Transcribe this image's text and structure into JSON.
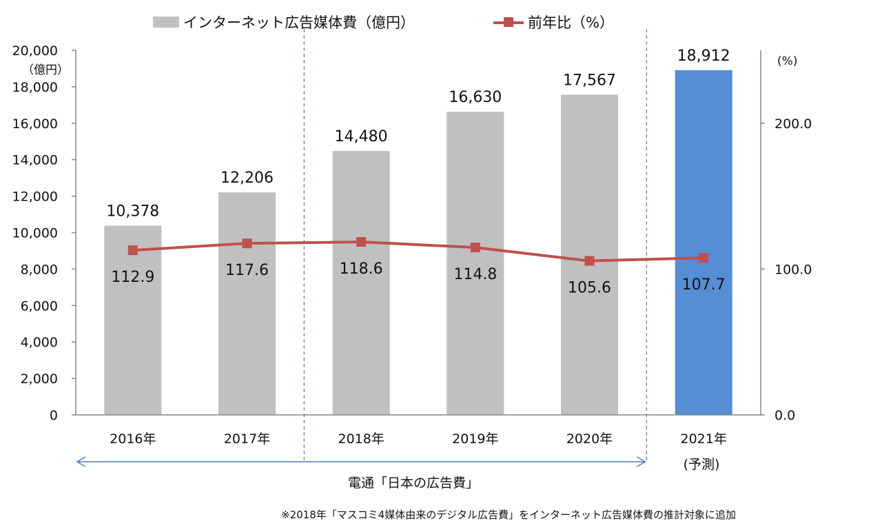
{
  "chart_data": {
    "type": "bar",
    "categories": [
      "2016年",
      "2017年",
      "2018年",
      "2019年",
      "2020年",
      "2021年"
    ],
    "series": [
      {
        "name": "インターネット広告媒体費（億円）",
        "type": "bar",
        "axis": "left",
        "values": [
          10378,
          12206,
          14480,
          16630,
          17567,
          18912
        ],
        "value_labels": [
          "10,378",
          "12,206",
          "14,480",
          "16,630",
          "17,567",
          "18,912"
        ],
        "colors": [
          "#c0c0c0",
          "#c0c0c0",
          "#c0c0c0",
          "#c0c0c0",
          "#c0c0c0",
          "#558ed5"
        ]
      },
      {
        "name": "前年比（%）",
        "type": "line",
        "axis": "right",
        "values": [
          112.9,
          117.6,
          118.6,
          114.8,
          105.6,
          107.7
        ],
        "value_labels": [
          "112.9",
          "117.6",
          "118.6",
          "114.8",
          "105.6",
          "107.7"
        ],
        "color": "#c0504d"
      }
    ],
    "y_left": {
      "unit_label": "（億円）",
      "ylim": [
        0,
        20000
      ],
      "ticks": [
        "0",
        "2,000",
        "4,000",
        "6,000",
        "8,000",
        "10,000",
        "12,000",
        "14,000",
        "16,000",
        "18,000",
        "20,000"
      ]
    },
    "y_right": {
      "unit_label": "(%)",
      "ylim": [
        0,
        250
      ],
      "ticks": [
        "0.0",
        "100.0",
        "200.0"
      ],
      "tick_values": [
        0,
        100,
        200
      ]
    },
    "forecast_note": "(予測)",
    "source_label": "電通「日本の広告費」",
    "footnote": "※2018年「マスコミ4媒体由来のデジタル広告費」をインターネット広告媒体費の推計対象に追加",
    "grid": false,
    "legend_position": "top"
  }
}
